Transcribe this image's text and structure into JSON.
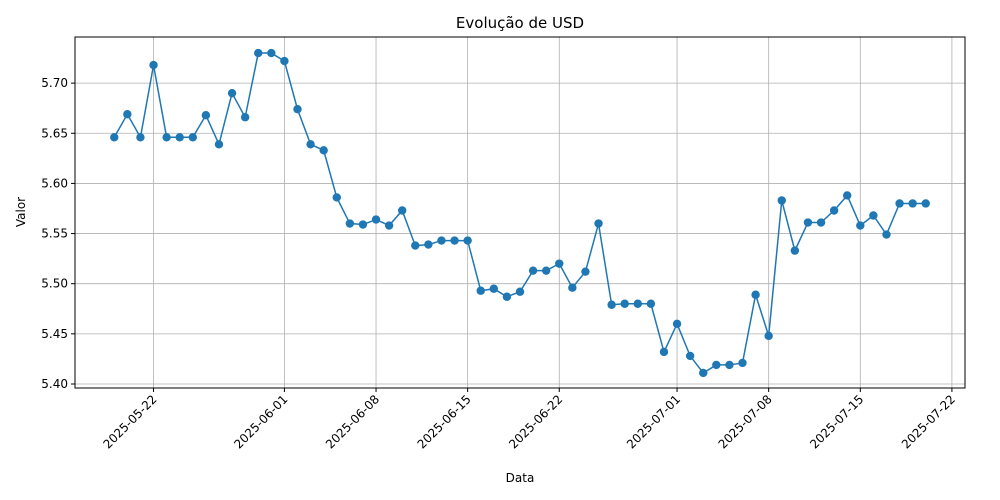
{
  "chart_data": {
    "type": "line",
    "title": "Evolução de USD",
    "xlabel": "Data",
    "ylabel": "Valor",
    "grid": true,
    "line_color": "#1f77b4",
    "x_ticks": [
      "2025-05-22",
      "2025-06-01",
      "2025-06-08",
      "2025-06-15",
      "2025-06-22",
      "2025-07-01",
      "2025-07-08",
      "2025-07-15",
      "2025-07-22"
    ],
    "y_ticks": [
      "5.40",
      "5.45",
      "5.50",
      "5.55",
      "5.60",
      "5.65",
      "5.70"
    ],
    "xlim": [
      "2025-05-16",
      "2025-07-23"
    ],
    "ylim": [
      5.396,
      5.746
    ],
    "series": [
      {
        "x": [
          "2025-05-19",
          "2025-05-20",
          "2025-05-21",
          "2025-05-22",
          "2025-05-23",
          "2025-05-24",
          "2025-05-25",
          "2025-05-26",
          "2025-05-27",
          "2025-05-28",
          "2025-05-29",
          "2025-05-30",
          "2025-05-31",
          "2025-06-01",
          "2025-06-02",
          "2025-06-03",
          "2025-06-04",
          "2025-06-05",
          "2025-06-06",
          "2025-06-07",
          "2025-06-08",
          "2025-06-09",
          "2025-06-10",
          "2025-06-11",
          "2025-06-12",
          "2025-06-13",
          "2025-06-14",
          "2025-06-15",
          "2025-06-16",
          "2025-06-17",
          "2025-06-18",
          "2025-06-19",
          "2025-06-20",
          "2025-06-21",
          "2025-06-22",
          "2025-06-23",
          "2025-06-24",
          "2025-06-25",
          "2025-06-26",
          "2025-06-27",
          "2025-06-28",
          "2025-06-29",
          "2025-06-30",
          "2025-07-01",
          "2025-07-02",
          "2025-07-03",
          "2025-07-04",
          "2025-07-05",
          "2025-07-06",
          "2025-07-07",
          "2025-07-08",
          "2025-07-09",
          "2025-07-10",
          "2025-07-11",
          "2025-07-12",
          "2025-07-13",
          "2025-07-14",
          "2025-07-15",
          "2025-07-16",
          "2025-07-17",
          "2025-07-18",
          "2025-07-19",
          "2025-07-20"
        ],
        "y": [
          5.646,
          5.669,
          5.646,
          5.718,
          5.646,
          5.646,
          5.646,
          5.668,
          5.639,
          5.69,
          5.666,
          5.73,
          5.73,
          5.722,
          5.674,
          5.639,
          5.633,
          5.586,
          5.56,
          5.559,
          5.564,
          5.558,
          5.573,
          5.538,
          5.539,
          5.543,
          5.543,
          5.543,
          5.493,
          5.495,
          5.487,
          5.492,
          5.513,
          5.513,
          5.52,
          5.496,
          5.512,
          5.56,
          5.479,
          5.48,
          5.48,
          5.48,
          5.432,
          5.46,
          5.428,
          5.411,
          5.419,
          5.419,
          5.421,
          5.489,
          5.448,
          5.583,
          5.533,
          5.561,
          5.561,
          5.573,
          5.588,
          5.558,
          5.568,
          5.549,
          5.58,
          5.58,
          5.58
        ]
      }
    ]
  }
}
